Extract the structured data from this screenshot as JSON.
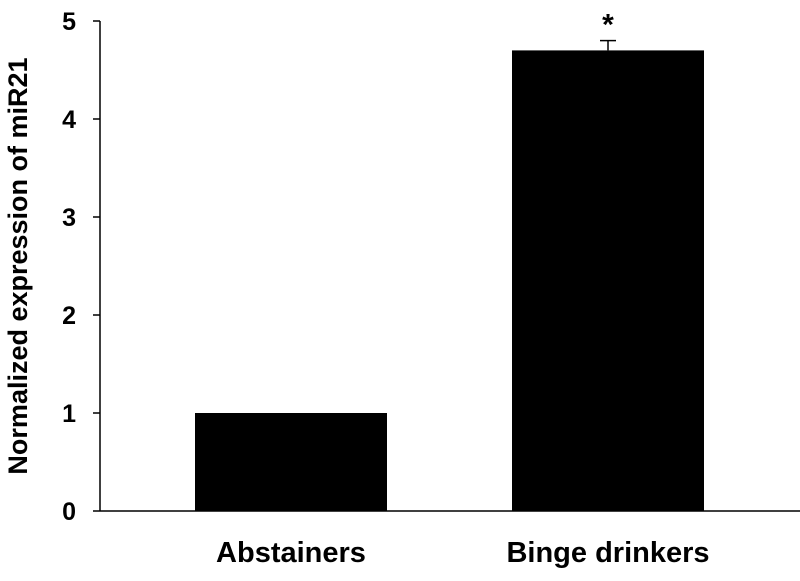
{
  "chart_data": {
    "type": "bar",
    "title": "",
    "xlabel": "",
    "ylabel": "Normalized expression of miR21",
    "categories": [
      "Abstainers",
      "Binge drinkers"
    ],
    "values": [
      1.0,
      4.7
    ],
    "errors": [
      0,
      0.1
    ],
    "annotations": [
      "",
      "*"
    ],
    "ylim": [
      0,
      5
    ],
    "yticks": [
      "0",
      "1",
      "2",
      "3",
      "4",
      "5"
    ],
    "grid": false,
    "bar_color": "#000000"
  }
}
